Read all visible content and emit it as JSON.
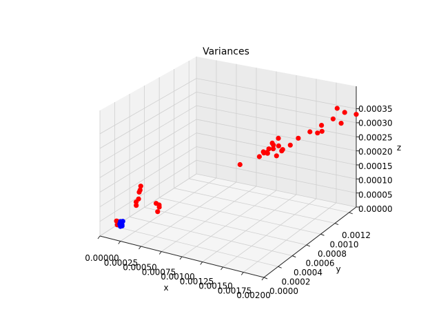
{
  "chart_data": {
    "type": "scatter",
    "projection": "3d",
    "title": "Variances",
    "xlabel": "x",
    "ylabel": "y",
    "zlabel": "z",
    "xlim": [
      0,
      0.002
    ],
    "ylim": [
      0,
      0.0013
    ],
    "zlim": [
      0,
      0.00043
    ],
    "grid": true,
    "xticks": [
      "0.00000",
      "0.00025",
      "0.00050",
      "0.00075",
      "0.00100",
      "0.00125",
      "0.00150",
      "0.00175",
      "0.00200"
    ],
    "yticks": [
      "0.0000",
      "0.0002",
      "0.0004",
      "0.0006",
      "0.0008",
      "0.0010",
      "0.0012"
    ],
    "zticks": [
      "0.00000",
      "0.00005",
      "0.00010",
      "0.00015",
      "0.00020",
      "0.00025",
      "0.00030",
      "0.00035"
    ],
    "series": [
      {
        "color": "#ff0000",
        "points": [
          [
            4e-05,
            0.00019,
            1e-05
          ],
          [
            3e-05,
            0.0002,
            2e-05
          ],
          [
            4e-05,
            0.00018,
            2.5e-05
          ],
          [
            5e-05,
            0.0002,
            1.5e-05
          ],
          [
            0.0001,
            0.00038,
            5e-05
          ],
          [
            0.00011,
            0.0004,
            7e-05
          ],
          [
            0.0001,
            0.00042,
            9e-05
          ],
          [
            0.00012,
            0.00041,
            0.0001
          ],
          [
            9e-05,
            0.00039,
            6e-05
          ],
          [
            0.00011,
            0.00043,
            0.00011
          ],
          [
            0.0003,
            0.00045,
            3e-05
          ],
          [
            0.00031,
            0.00046,
            4.5e-05
          ],
          [
            0.00029,
            0.00044,
            6e-05
          ],
          [
            0.0003,
            0.00047,
            5e-05
          ],
          [
            0.001,
            0.0008,
            0.00018
          ],
          [
            0.00115,
            0.0009,
            0.0002
          ],
          [
            0.0012,
            0.00095,
            0.00021
          ],
          [
            0.00125,
            0.00098,
            0.00022
          ],
          [
            0.0013,
            0.001,
            0.00023
          ],
          [
            0.0012,
            0.0009,
            0.00022
          ],
          [
            0.00128,
            0.00095,
            0.00024
          ],
          [
            0.00132,
            0.00102,
            0.00021
          ],
          [
            0.00118,
            0.00098,
            0.0002
          ],
          [
            0.00135,
            0.001,
            0.00022
          ],
          [
            0.00125,
            0.00092,
            0.00023
          ],
          [
            0.0013,
            0.00097,
            0.0002
          ],
          [
            0.0014,
            0.00105,
            0.00023
          ],
          [
            0.00122,
            0.001,
            0.000235
          ],
          [
            0.00127,
            0.00103,
            0.00025
          ],
          [
            0.00118,
            0.00093,
            0.00021
          ],
          [
            0.0015,
            0.00105,
            0.00026
          ],
          [
            0.0016,
            0.0011,
            0.00028
          ],
          [
            0.0017,
            0.00115,
            0.0003
          ],
          [
            0.0018,
            0.0012,
            0.00032
          ],
          [
            0.0019,
            0.00125,
            0.00034
          ],
          [
            0.00185,
            0.0012,
            0.00036
          ],
          [
            0.002,
            0.0013,
            0.00033
          ],
          [
            0.00175,
            0.0011,
            0.00029
          ],
          [
            0.00165,
            0.00115,
            0.00027
          ],
          [
            0.0019,
            0.0012,
            0.00031
          ]
        ]
      },
      {
        "color": "#0000ff",
        "points": [
          [
            7e-05,
            0.0002,
            5e-06
          ],
          [
            8e-05,
            0.00021,
            1e-05
          ],
          [
            7e-05,
            0.00019,
            1.5e-05
          ],
          [
            9e-05,
            0.0002,
            8e-06
          ],
          [
            8e-05,
            0.00022,
            2e-05
          ],
          [
            7e-05,
            0.0002,
            2.2e-05
          ]
        ]
      }
    ]
  }
}
